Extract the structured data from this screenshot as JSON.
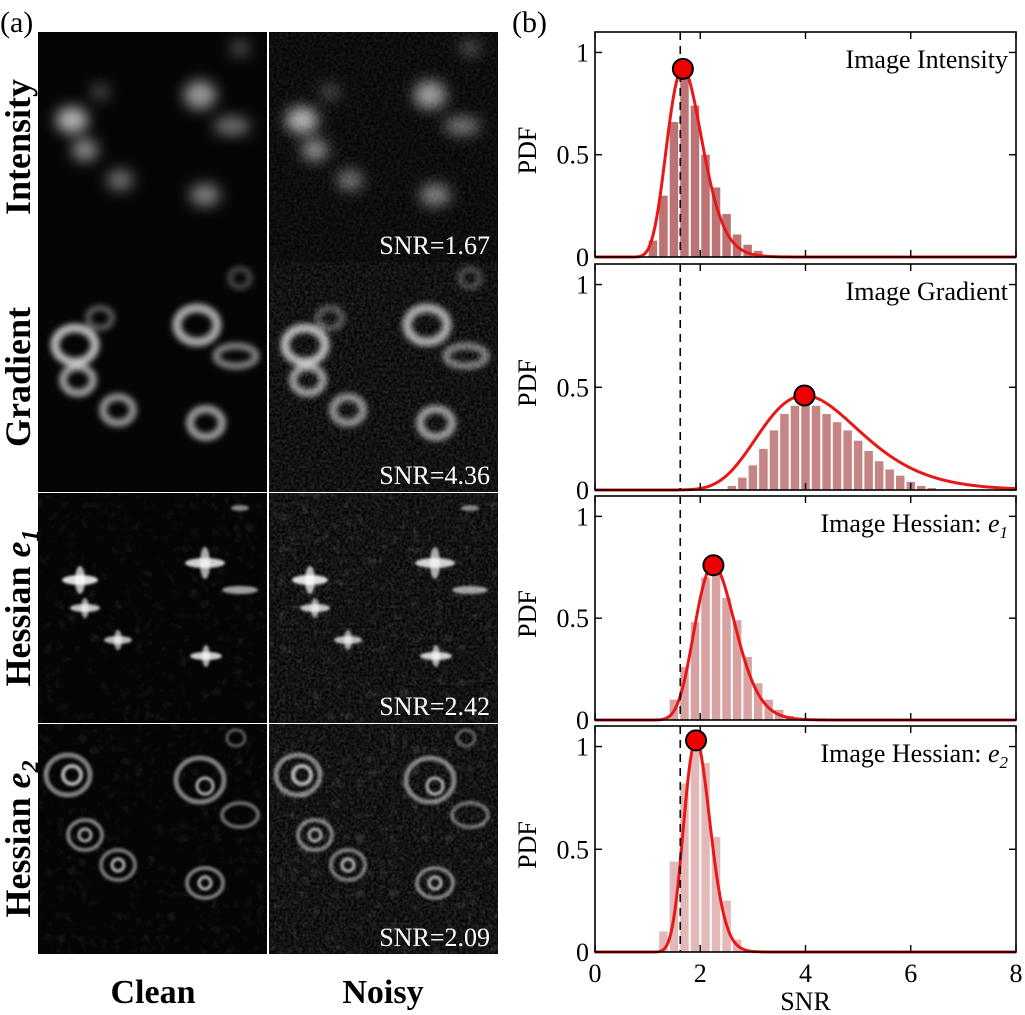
{
  "panel_a": {
    "label": "(a)",
    "columns": [
      "Clean",
      "Noisy"
    ],
    "rows": [
      {
        "label": "Intensity",
        "snr_text": "SNR=1.67"
      },
      {
        "label": "Gradient",
        "snr_text": "SNR=4.36"
      },
      {
        "label": "Hessian",
        "sub": "e",
        "subsub": "1",
        "snr_text": "SNR=2.42"
      },
      {
        "label": "Hessian",
        "sub": "e",
        "subsub": "2",
        "snr_text": "SNR=2.09"
      }
    ]
  },
  "panel_b": {
    "label": "(b)"
  },
  "chart_data": [
    {
      "type": "bar",
      "title": "Image Intensity",
      "ylabel": "PDF",
      "xlim": [
        0,
        8
      ],
      "ylim": [
        0,
        1.1
      ],
      "yticks": [
        0,
        0.5,
        1
      ],
      "yticklabels": [
        "0",
        "0.5",
        "1"
      ],
      "x": [
        1.1,
        1.3,
        1.5,
        1.7,
        1.9,
        2.1,
        2.3,
        2.5,
        2.7,
        2.9,
        3.1,
        3.3
      ],
      "values": [
        0.08,
        0.3,
        0.66,
        0.87,
        0.74,
        0.5,
        0.34,
        0.21,
        0.11,
        0.06,
        0.03,
        0.01
      ],
      "fit_peak": {
        "x": 1.67,
        "y": 0.92
      },
      "dashed_x": 1.62,
      "bar_color": "#b46464",
      "curve_color": "#e81818"
    },
    {
      "type": "bar",
      "title": "Image Gradient",
      "ylabel": "PDF",
      "xlim": [
        0,
        8
      ],
      "ylim": [
        0,
        1.1
      ],
      "yticks": [
        0,
        0.5,
        1
      ],
      "yticklabels": [
        "0",
        "0.5",
        "1"
      ],
      "x": [
        2.6,
        2.8,
        3.0,
        3.2,
        3.4,
        3.6,
        3.8,
        4.0,
        4.2,
        4.4,
        4.6,
        4.8,
        5.0,
        5.2,
        5.4,
        5.6,
        5.8,
        6.0,
        6.2,
        6.4
      ],
      "values": [
        0.02,
        0.06,
        0.12,
        0.2,
        0.29,
        0.37,
        0.41,
        0.42,
        0.41,
        0.37,
        0.33,
        0.29,
        0.24,
        0.19,
        0.14,
        0.1,
        0.07,
        0.04,
        0.02,
        0.01
      ],
      "fit_peak": {
        "x": 3.98,
        "y": 0.46
      },
      "dashed_x": 1.62,
      "bar_color": "#c07878",
      "curve_color": "#e81818"
    },
    {
      "type": "bar",
      "title": "Image Hessian: ",
      "title_sym": "e",
      "title_sub": "1",
      "ylabel": "PDF",
      "xlim": [
        0,
        8
      ],
      "ylim": [
        0,
        1.1
      ],
      "yticks": [
        0,
        0.5,
        1
      ],
      "yticklabels": [
        "0",
        "0.5",
        "1"
      ],
      "x": [
        1.5,
        1.7,
        1.9,
        2.1,
        2.3,
        2.5,
        2.7,
        2.9,
        3.1,
        3.3,
        3.5,
        3.7
      ],
      "values": [
        0.1,
        0.26,
        0.48,
        0.7,
        0.74,
        0.6,
        0.49,
        0.31,
        0.18,
        0.1,
        0.05,
        0.02
      ],
      "fit_peak": {
        "x": 2.25,
        "y": 0.76
      },
      "dashed_x": 1.62,
      "bar_color": "#d49898",
      "curve_color": "#e81818"
    },
    {
      "type": "bar",
      "title": "Image Hessian: ",
      "title_sym": "e",
      "title_sub": "2",
      "ylabel": "PDF",
      "xlabel": "SNR",
      "xlim": [
        0,
        8
      ],
      "ylim": [
        0,
        1.1
      ],
      "xticks": [
        0,
        2,
        4,
        6,
        8
      ],
      "xticklabels": [
        "0",
        "2",
        "4",
        "6",
        "8"
      ],
      "yticks": [
        0,
        0.5,
        1
      ],
      "yticklabels": [
        "0",
        "0.5",
        "1"
      ],
      "x": [
        1.3,
        1.5,
        1.7,
        1.9,
        2.1,
        2.3,
        2.5,
        2.7
      ],
      "values": [
        0.1,
        0.44,
        0.82,
        1.0,
        0.92,
        0.56,
        0.25,
        0.06
      ],
      "fit_peak": {
        "x": 1.92,
        "y": 1.03
      },
      "dashed_x": 1.62,
      "bar_color": "#e0b0b0",
      "curve_color": "#e81818"
    }
  ]
}
